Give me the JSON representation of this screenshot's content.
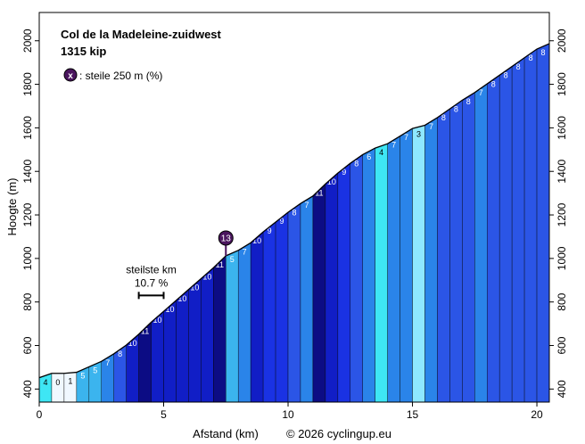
{
  "chart_data": {
    "type": "area",
    "title": "Col de la Madeleine-zuidwest",
    "subtitle": "1315 kip",
    "legend_text": ": steile 250 m (%)",
    "legend_marker": "x",
    "xlabel": "Afstand (km)",
    "ylabel": "Hoogte (m)",
    "credit": "© 2026 cyclingup.eu",
    "xlim": [
      0,
      20.5
    ],
    "ylim": [
      340,
      2130
    ],
    "xticks": [
      0,
      5,
      10,
      15,
      20
    ],
    "yticks": [
      400,
      600,
      800,
      1000,
      1200,
      1400,
      1600,
      1800,
      2000
    ],
    "grid": false,
    "profile": [
      {
        "x": 0.0,
        "y": 452
      },
      {
        "x": 0.5,
        "y": 472
      },
      {
        "x": 1.0,
        "y": 472
      },
      {
        "x": 1.5,
        "y": 477
      },
      {
        "x": 2.0,
        "y": 502
      },
      {
        "x": 2.5,
        "y": 527
      },
      {
        "x": 3.0,
        "y": 562
      },
      {
        "x": 3.5,
        "y": 602
      },
      {
        "x": 4.0,
        "y": 652
      },
      {
        "x": 4.5,
        "y": 707
      },
      {
        "x": 5.0,
        "y": 757
      },
      {
        "x": 5.5,
        "y": 807
      },
      {
        "x": 6.0,
        "y": 857
      },
      {
        "x": 6.5,
        "y": 907
      },
      {
        "x": 7.0,
        "y": 957
      },
      {
        "x": 7.5,
        "y": 1012
      },
      {
        "x": 8.0,
        "y": 1037
      },
      {
        "x": 8.5,
        "y": 1072
      },
      {
        "x": 9.0,
        "y": 1122
      },
      {
        "x": 9.5,
        "y": 1167
      },
      {
        "x": 10.0,
        "y": 1212
      },
      {
        "x": 10.5,
        "y": 1252
      },
      {
        "x": 11.0,
        "y": 1287
      },
      {
        "x": 11.5,
        "y": 1342
      },
      {
        "x": 12.0,
        "y": 1392
      },
      {
        "x": 12.5,
        "y": 1437
      },
      {
        "x": 13.0,
        "y": 1477
      },
      {
        "x": 13.5,
        "y": 1507
      },
      {
        "x": 14.0,
        "y": 1527
      },
      {
        "x": 14.5,
        "y": 1562
      },
      {
        "x": 15.0,
        "y": 1597
      },
      {
        "x": 15.5,
        "y": 1612
      },
      {
        "x": 16.0,
        "y": 1647
      },
      {
        "x": 16.5,
        "y": 1687
      },
      {
        "x": 17.0,
        "y": 1727
      },
      {
        "x": 17.5,
        "y": 1762
      },
      {
        "x": 18.0,
        "y": 1802
      },
      {
        "x": 18.5,
        "y": 1842
      },
      {
        "x": 19.0,
        "y": 1882
      },
      {
        "x": 19.5,
        "y": 1922
      },
      {
        "x": 20.0,
        "y": 1962
      },
      {
        "x": 20.5,
        "y": 1987
      }
    ],
    "segment_gradients": [
      4,
      0,
      1,
      5,
      5,
      7,
      8,
      10,
      11,
      10,
      10,
      10,
      10,
      10,
      11,
      5,
      7,
      10,
      9,
      9,
      8,
      7,
      11,
      10,
      9,
      8,
      6,
      4,
      7,
      7,
      3,
      7,
      8,
      8,
      8,
      7,
      8,
      8,
      8,
      8,
      8
    ],
    "gradient_colors": {
      "0": "#f0f8ff",
      "1": "#f0f8ff",
      "3": "#8ee8ff",
      "4": "#3ee6f4",
      "5": "#3bb4ee",
      "6": "#2a84e9",
      "7": "#2a84e9",
      "8": "#2b55e6",
      "9": "#1a32e3",
      "10": "#111ec6",
      "11": "#0c0c84"
    },
    "steepest_marker": {
      "x": 7.5,
      "y": 1012,
      "label": "13"
    },
    "steepest_km": {
      "label": "steilste km",
      "value": "10.7 %",
      "x_from": 4.0,
      "x_to": 5.0,
      "y": 830
    }
  }
}
